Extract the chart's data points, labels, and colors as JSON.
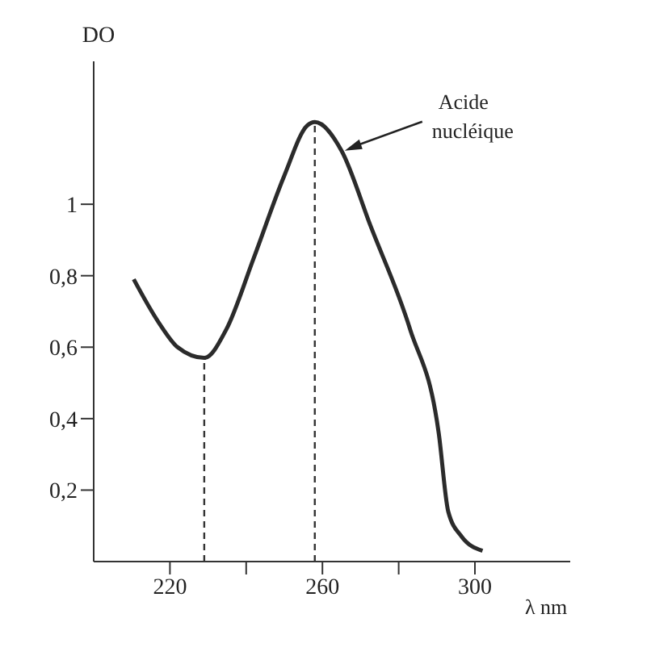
{
  "chart_data": {
    "type": "line",
    "xlabel": "λ nm",
    "ylabel": "DO",
    "x": [
      210.5,
      217,
      222,
      229,
      234.8,
      242,
      250,
      256,
      258,
      265,
      272.6,
      283,
      290.5,
      293,
      296.5,
      302
    ],
    "series": [
      {
        "color": "#2b2b2b",
        "values": [
          0.79,
          0.67,
          0.6,
          0.57,
          0.65,
          0.85,
          1.08,
          1.22,
          1.23,
          1.15,
          0.94,
          0.65,
          0.36,
          0.14,
          0.07,
          0.03
        ]
      }
    ],
    "xlim": [
      200,
      325
    ],
    "ylim": [
      0,
      1.4
    ],
    "xticks": [
      220,
      {
        "value": 240,
        "label": null
      },
      260,
      {
        "value": 280,
        "label": null
      },
      300
    ],
    "yticks": [
      {
        "value": 0.2,
        "label": "0,2"
      },
      {
        "value": 0.4,
        "label": "0,4"
      },
      {
        "value": 0.6,
        "label": "0,6"
      },
      {
        "value": 0.8,
        "label": "0,8"
      },
      1
    ],
    "ref_lines": [
      {
        "axis": "x",
        "value": 229,
        "line_style": "dashed"
      },
      {
        "axis": "x",
        "value": 258,
        "line_style": "dashed"
      }
    ],
    "annotations": [
      {
        "text": "Acide nucléique",
        "x": 265,
        "y": 1.15
      }
    ],
    "marker": "none",
    "line_style": "solid",
    "grid": false
  }
}
